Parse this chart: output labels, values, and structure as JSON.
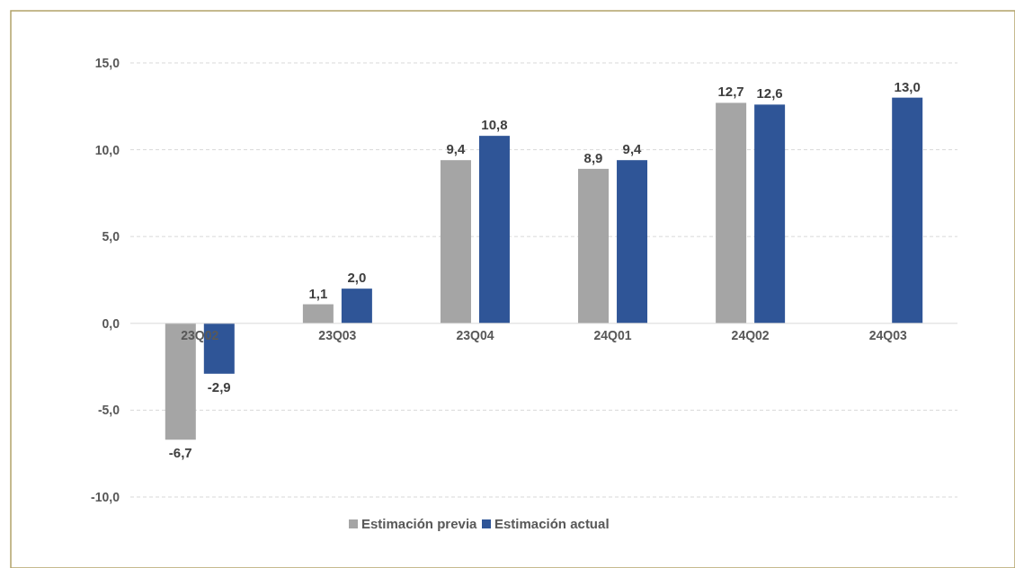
{
  "chart_data": {
    "type": "bar",
    "categories": [
      "23Q02",
      "23Q03",
      "23Q04",
      "24Q01",
      "24Q02",
      "24Q03"
    ],
    "series": [
      {
        "name": "Estimación previa",
        "color": "#a5a5a5",
        "values": [
          -6.7,
          1.1,
          9.4,
          8.9,
          12.7,
          null
        ],
        "value_labels": [
          "-6,7",
          "1,1",
          "9,4",
          "8,9",
          "12,7",
          null
        ]
      },
      {
        "name": "Estimación actual",
        "color": "#2f5597",
        "values": [
          -2.9,
          2.0,
          10.8,
          9.4,
          12.6,
          13.0
        ],
        "value_labels": [
          "-2,9",
          "2,0",
          "10,8",
          "9,4",
          "12,6",
          "13,0"
        ]
      }
    ],
    "ylim": [
      -10,
      15
    ],
    "yticks": [
      {
        "value": -10,
        "label": "-10,0"
      },
      {
        "value": -5,
        "label": "-5,0"
      },
      {
        "value": 0,
        "label": "0,0"
      },
      {
        "value": 5,
        "label": "5,0"
      },
      {
        "value": 10,
        "label": "10,0"
      },
      {
        "value": 15,
        "label": "15,0"
      }
    ],
    "grid": "y",
    "legend": "bottom"
  }
}
